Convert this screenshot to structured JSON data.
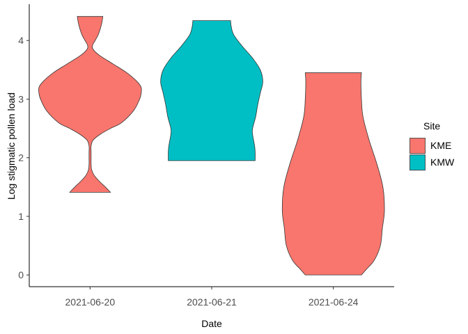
{
  "chart_data": {
    "type": "violin",
    "title": "",
    "xlabel": "Date",
    "ylabel": "Log stigmatic pollen load",
    "ylim": [
      -0.2,
      4.62
    ],
    "yticks": [
      0,
      1,
      2,
      3,
      4
    ],
    "categories": [
      "2021-06-20",
      "2021-06-21",
      "2021-06-24"
    ],
    "grid": false,
    "legend": {
      "title": "Site",
      "position": "right",
      "entries": [
        {
          "label": "KME",
          "color": "#F8766D"
        },
        {
          "label": "KMW",
          "color": "#00BFC4"
        }
      ]
    },
    "violins": [
      {
        "category": "2021-06-20",
        "site": "KME",
        "min": 1.41,
        "max": 4.41,
        "density_profile": [
          [
            1.41,
            0.4
          ],
          [
            1.5,
            0.3
          ],
          [
            1.6,
            0.18
          ],
          [
            1.7,
            0.08
          ],
          [
            1.8,
            0.03
          ],
          [
            1.9,
            0.02
          ],
          [
            2.0,
            0.02
          ],
          [
            2.1,
            0.02
          ],
          [
            2.2,
            0.02
          ],
          [
            2.3,
            0.06
          ],
          [
            2.4,
            0.2
          ],
          [
            2.5,
            0.4
          ],
          [
            2.6,
            0.62
          ],
          [
            2.8,
            0.85
          ],
          [
            3.0,
            0.97
          ],
          [
            3.1,
            1.0
          ],
          [
            3.2,
            1.0
          ],
          [
            3.3,
            0.92
          ],
          [
            3.45,
            0.72
          ],
          [
            3.6,
            0.45
          ],
          [
            3.75,
            0.18
          ],
          [
            3.85,
            0.06
          ],
          [
            3.92,
            0.05
          ],
          [
            4.0,
            0.1
          ],
          [
            4.1,
            0.16
          ],
          [
            4.2,
            0.2
          ],
          [
            4.3,
            0.23
          ],
          [
            4.41,
            0.25
          ]
        ]
      },
      {
        "category": "2021-06-21",
        "site": "KMW",
        "min": 1.95,
        "max": 4.34,
        "density_profile": [
          [
            1.95,
            0.85
          ],
          [
            2.1,
            0.85
          ],
          [
            2.2,
            0.84
          ],
          [
            2.4,
            0.8
          ],
          [
            2.5,
            0.8
          ],
          [
            2.7,
            0.86
          ],
          [
            2.9,
            0.9
          ],
          [
            3.1,
            0.95
          ],
          [
            3.3,
            1.0
          ],
          [
            3.5,
            0.95
          ],
          [
            3.7,
            0.8
          ],
          [
            3.9,
            0.6
          ],
          [
            4.1,
            0.43
          ],
          [
            4.25,
            0.38
          ],
          [
            4.34,
            0.37
          ]
        ]
      },
      {
        "category": "2021-06-24",
        "site": "KME",
        "min": 0.0,
        "max": 3.45,
        "density_profile": [
          [
            0.0,
            0.55
          ],
          [
            0.1,
            0.65
          ],
          [
            0.25,
            0.8
          ],
          [
            0.5,
            0.92
          ],
          [
            0.8,
            0.96
          ],
          [
            1.1,
            1.0
          ],
          [
            1.5,
            0.97
          ],
          [
            1.9,
            0.85
          ],
          [
            2.3,
            0.7
          ],
          [
            2.7,
            0.58
          ],
          [
            3.0,
            0.55
          ],
          [
            3.3,
            0.54
          ],
          [
            3.45,
            0.55
          ]
        ]
      }
    ]
  }
}
